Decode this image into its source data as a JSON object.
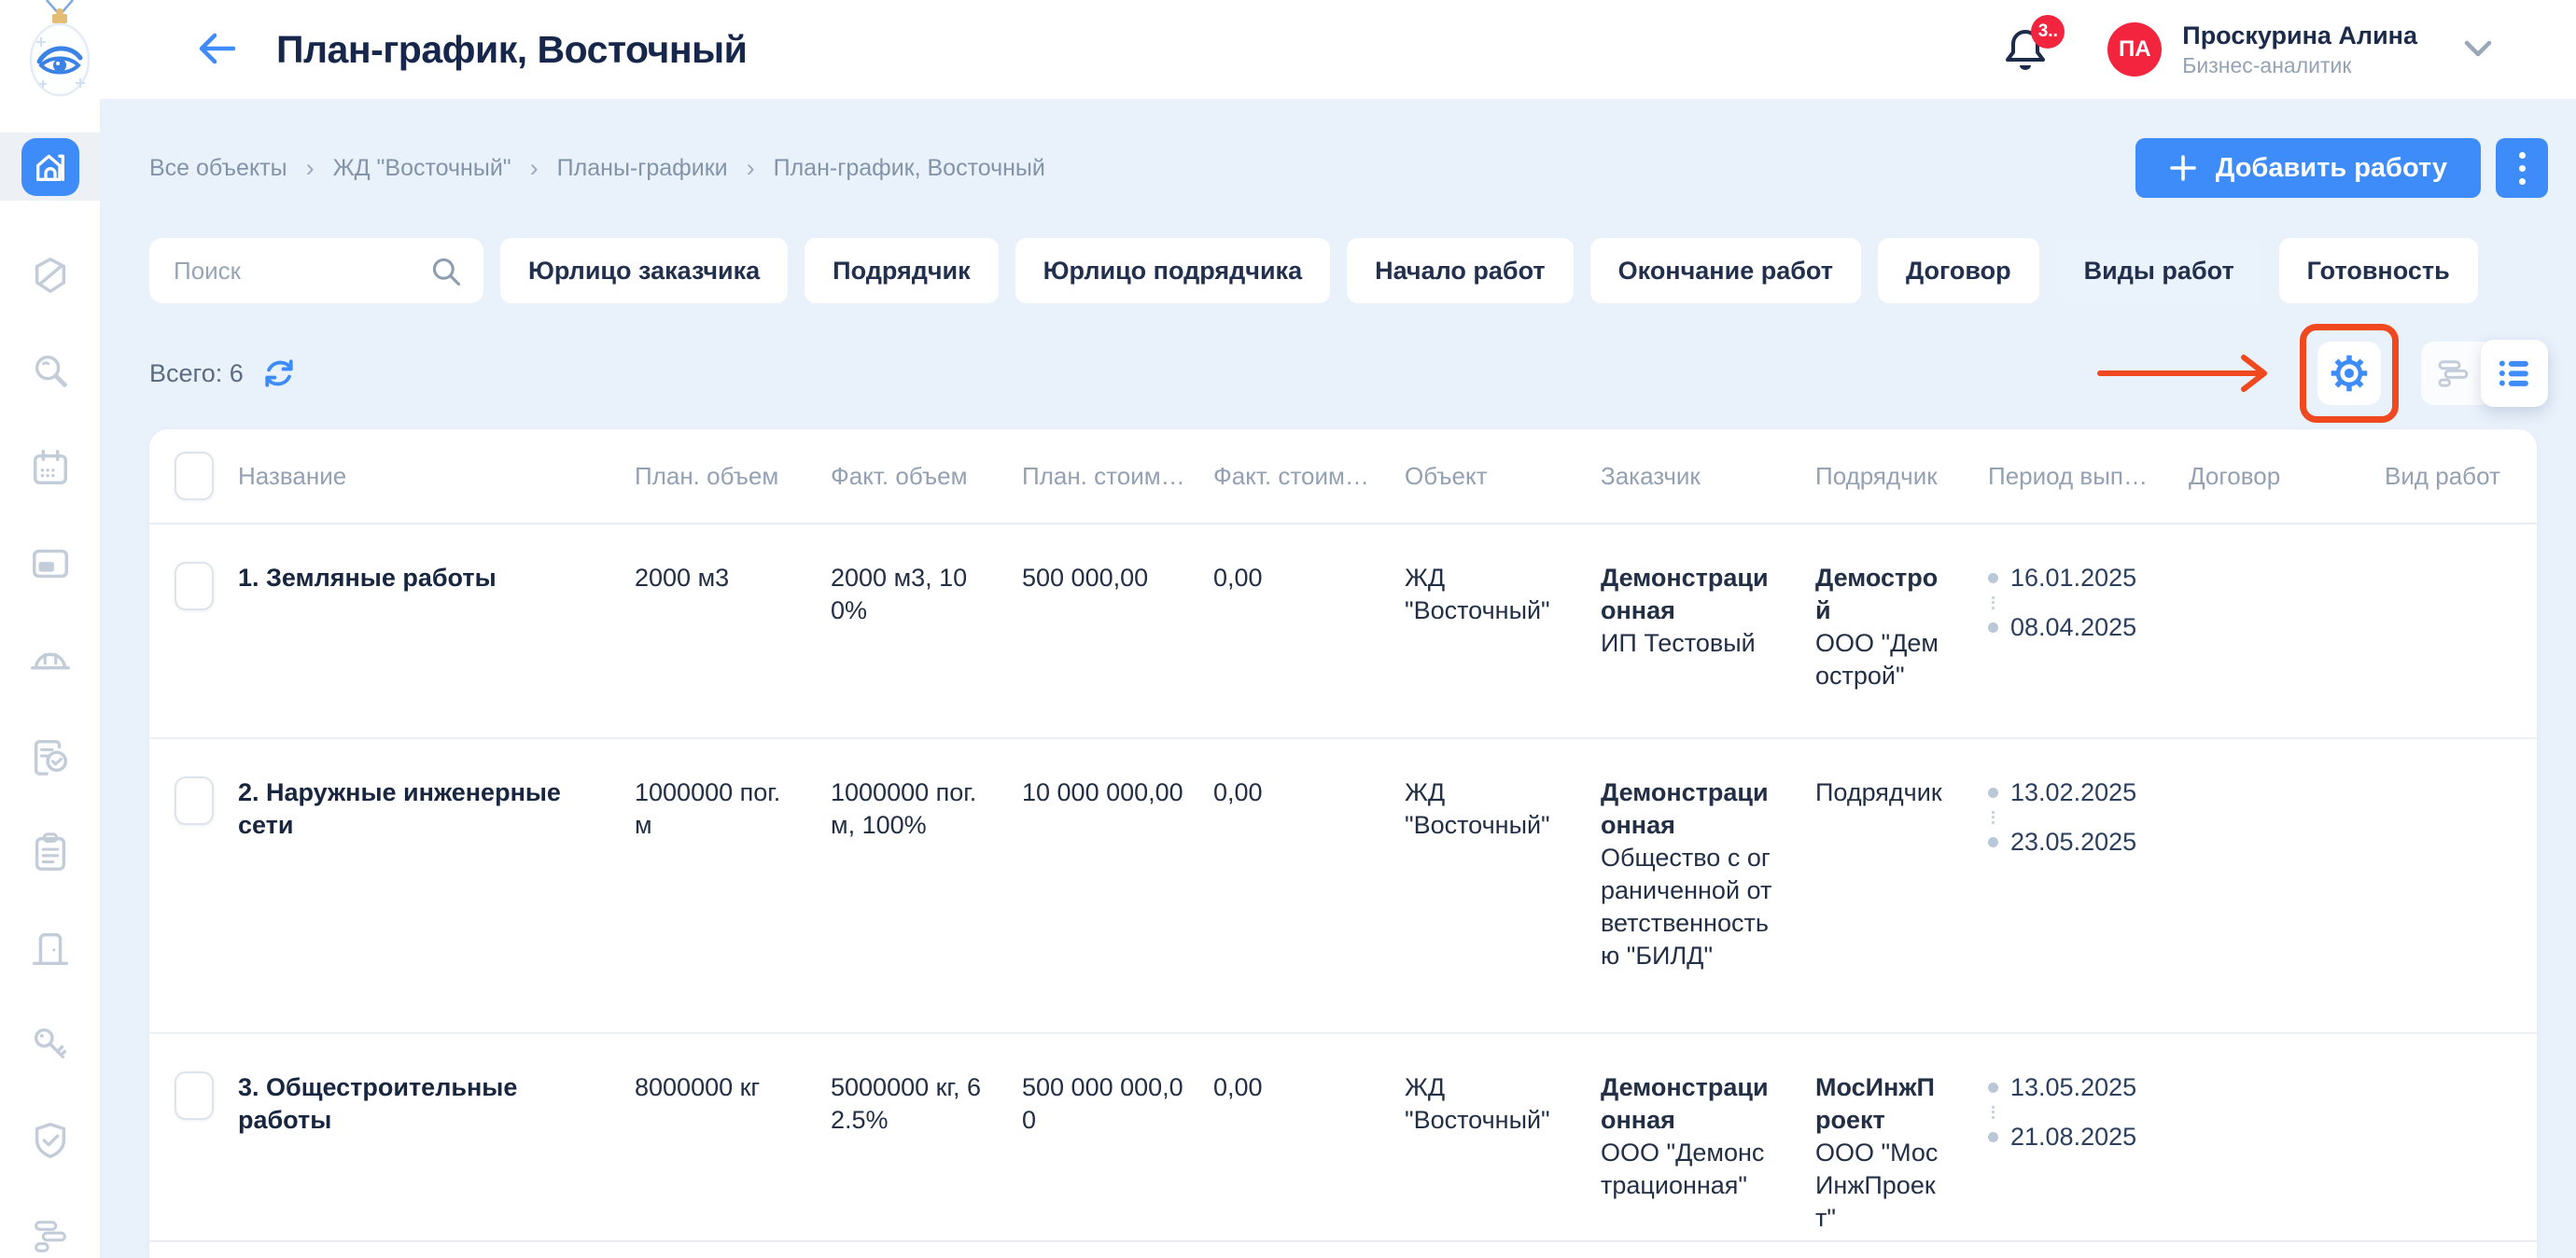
{
  "colors": {
    "primary_blue": "#3e8cfa",
    "annotation_red": "#f0481f",
    "avatar_red": "#f2243e",
    "page_bg": "#e9f1fb"
  },
  "header": {
    "title": "План-график, Восточный",
    "notifications_badge": "3..",
    "user": {
      "initials": "ПА",
      "name": "Проскурина Алина",
      "role": "Бизнес-аналитик"
    }
  },
  "sidebar": {
    "items": [
      {
        "icon": "home-icon",
        "active": true
      },
      {
        "icon": "hexagon-slash-icon"
      },
      {
        "icon": "search-icon"
      },
      {
        "icon": "calendar-icon"
      },
      {
        "icon": "card-icon"
      },
      {
        "icon": "hard-hat-icon"
      },
      {
        "icon": "clipboard-check-icon"
      },
      {
        "icon": "clipboard-list-icon"
      },
      {
        "icon": "door-icon"
      },
      {
        "icon": "key-icon"
      },
      {
        "icon": "shield-check-icon"
      },
      {
        "icon": "gantt-icon"
      }
    ]
  },
  "breadcrumb": {
    "items": [
      "Все объекты",
      "ЖД \"Восточный\"",
      "Планы-графики",
      "План-график, Восточный"
    ]
  },
  "toolbar": {
    "add_button_label": "Добавить работу"
  },
  "filters": {
    "search_placeholder": "Поиск",
    "chips": [
      {
        "label": "Юрлицо заказчика"
      },
      {
        "label": "Подрядчик"
      },
      {
        "label": "Юрлицо подрядчика"
      },
      {
        "label": "Начало работ"
      },
      {
        "label": "Окончание работ"
      },
      {
        "label": "Договор"
      },
      {
        "label": "Виды работ",
        "highlighted": true
      },
      {
        "label": "Готовность"
      }
    ]
  },
  "list_meta": {
    "total_label": "Всего: 6"
  },
  "table": {
    "columns": [
      "Название",
      "План. объем",
      "Факт. объем",
      "План. стоим…",
      "Факт. стоим…",
      "Объект",
      "Заказчик",
      "Подрядчик",
      "Период вып…",
      "Договор",
      "Вид работ"
    ],
    "rows": [
      {
        "name": "1. Земляные работы",
        "plan_volume": "2000 м3",
        "fact_volume": "2000 м3, 100%",
        "plan_cost": "500 000,00",
        "fact_cost": "0,00",
        "object": "ЖД \"Восточный\"",
        "customer": {
          "main": "Демонстрационная",
          "sub": "ИП Тестовый"
        },
        "contractor": {
          "main": "Демострой",
          "sub": "ООО \"Демострой\""
        },
        "period": {
          "start": "16.01.2025",
          "end": "08.04.2025"
        },
        "contract": "",
        "work_type": ""
      },
      {
        "name": "2. Наружные инженерные сети",
        "plan_volume": "1000000 пог. м",
        "fact_volume": "1000000 пог. м, 100%",
        "plan_cost": "10 000 000,00",
        "fact_cost": "0,00",
        "object": "ЖД \"Восточный\"",
        "customer": {
          "main": "Демонстрационная",
          "sub": "Общество с ограниченной ответственностью \"БИЛД\""
        },
        "contractor": {
          "main": "",
          "sub": "Подрядчик"
        },
        "period": {
          "start": "13.02.2025",
          "end": "23.05.2025"
        },
        "contract": "",
        "work_type": ""
      },
      {
        "name": "3. Общестроительные работы",
        "plan_volume": "8000000 кг",
        "fact_volume": "5000000 кг, 62.5%",
        "plan_cost": "500 000 000,00",
        "fact_cost": "0,00",
        "object": "ЖД \"Восточный\"",
        "customer": {
          "main": "Демонстрационная",
          "sub": "ООО \"Демонстрационная\""
        },
        "contractor": {
          "main": "МосИнжПроект",
          "sub": "ООО \"МосИнжПроект\""
        },
        "period": {
          "start": "13.05.2025",
          "end": "21.08.2025"
        },
        "contract": "",
        "work_type": ""
      }
    ]
  }
}
